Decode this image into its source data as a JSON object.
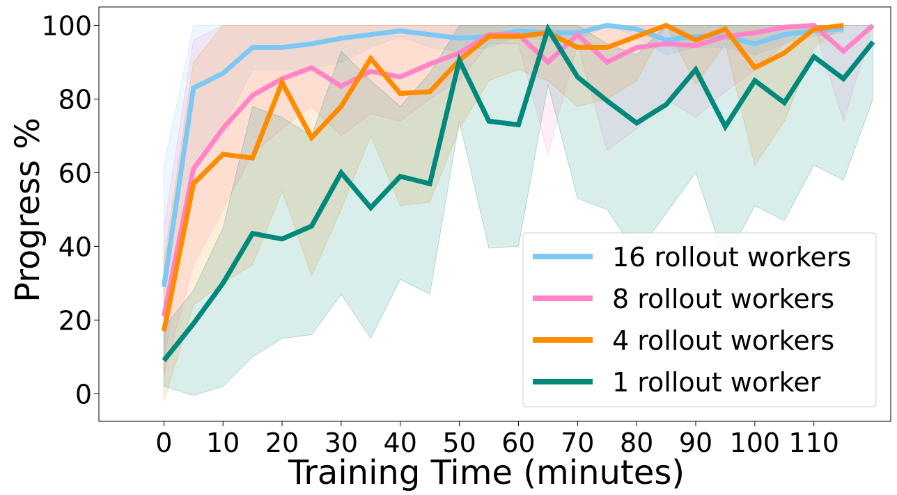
{
  "chart_data": {
    "type": "line",
    "title": "",
    "xlabel": "Training Time (minutes)",
    "ylabel": "Progress %",
    "xlim": [
      -11,
      123
    ],
    "ylim": [
      -7.5,
      105
    ],
    "xticks": [
      0,
      10,
      20,
      30,
      40,
      50,
      60,
      70,
      80,
      90,
      100,
      110
    ],
    "yticks": [
      0,
      20,
      40,
      60,
      80,
      100
    ],
    "grid": false,
    "legend_position": "lower-right",
    "series": [
      {
        "name": "16 rollout workers",
        "color": "#7ec8f5",
        "x": [
          0,
          5,
          10,
          15,
          20,
          25,
          30,
          35,
          40,
          45,
          50,
          55,
          60,
          65,
          70,
          75,
          80,
          85,
          90,
          95,
          100,
          105,
          110,
          115
        ],
        "values": [
          29,
          83,
          87,
          94,
          94,
          95,
          96.5,
          97.5,
          98.5,
          97.5,
          96.5,
          97,
          98.5,
          98,
          98,
          100,
          99,
          96,
          97,
          97,
          95,
          97.5,
          98.5,
          99
        ],
        "upper": [
          62,
          100,
          100,
          100,
          100,
          100,
          100,
          100,
          100,
          100,
          100,
          100,
          100,
          100,
          100,
          100,
          100,
          100,
          100,
          100,
          100,
          100,
          100,
          100
        ],
        "lower": [
          8,
          62,
          72,
          88,
          88,
          88,
          90,
          94,
          97,
          94,
          93,
          94,
          97,
          96,
          96,
          100,
          97,
          92,
          94,
          94,
          92,
          95,
          97,
          98
        ]
      },
      {
        "name": "8 rollout workers",
        "color": "#ff85c8",
        "x": [
          0,
          5,
          10,
          15,
          20,
          25,
          30,
          35,
          40,
          45,
          50,
          55,
          60,
          65,
          70,
          75,
          80,
          85,
          90,
          95,
          100,
          105,
          110,
          115,
          120
        ],
        "values": [
          21,
          61,
          72,
          81,
          85.5,
          88.5,
          83.5,
          87.5,
          86,
          89.5,
          92.5,
          97.5,
          97.5,
          90,
          97.5,
          90,
          94,
          95,
          94.5,
          97,
          98,
          99.5,
          100,
          93,
          100
        ],
        "upper": [
          45,
          96,
          100,
          100,
          100,
          100,
          100,
          100,
          100,
          100,
          100,
          100,
          100,
          100,
          100,
          100,
          100,
          100,
          100,
          100,
          100,
          100,
          100,
          100,
          100
        ],
        "lower": [
          5,
          35,
          50,
          65,
          72,
          78,
          70,
          76,
          74,
          80,
          85,
          95,
          95,
          65,
          95,
          66,
          72,
          80,
          75,
          82,
          88,
          95,
          100,
          74,
          100
        ]
      },
      {
        "name": "4 rollout workers",
        "color": "#ff8c00",
        "x": [
          0,
          5,
          10,
          15,
          20,
          25,
          30,
          35,
          40,
          45,
          50,
          55,
          60,
          65,
          70,
          75,
          80,
          85,
          90,
          95,
          100,
          105,
          110,
          115
        ],
        "values": [
          17,
          57,
          65,
          64,
          84.5,
          69.5,
          78,
          91,
          81.5,
          82,
          90.5,
          97,
          97,
          98,
          94,
          94,
          97,
          100,
          96,
          99,
          88.5,
          92.5,
          99,
          100
        ],
        "upper": [
          36,
          90,
          100,
          100,
          100,
          100,
          100,
          100,
          100,
          100,
          100,
          100,
          100,
          100,
          100,
          100,
          100,
          100,
          100,
          100,
          100,
          100,
          100,
          100
        ],
        "lower": [
          -2,
          24,
          30,
          35,
          55,
          32,
          50,
          70,
          51,
          52,
          72,
          85,
          88,
          85,
          78,
          80,
          85,
          100,
          84,
          95,
          62,
          74,
          94,
          100
        ]
      },
      {
        "name": "1 rollout worker",
        "color": "#00897b",
        "x": [
          0,
          5,
          10,
          15,
          20,
          25,
          30,
          35,
          40,
          45,
          50,
          55,
          60,
          65,
          70,
          75,
          80,
          85,
          90,
          95,
          100,
          105,
          110,
          115,
          120
        ],
        "values": [
          9,
          19,
          30,
          43.5,
          42,
          45.5,
          60,
          50.5,
          59,
          57,
          90.5,
          74,
          73,
          99,
          86,
          79.5,
          73.5,
          78.5,
          88,
          72.5,
          85,
          79,
          91.5,
          85.5,
          95.5
        ],
        "upper": [
          18,
          28,
          45,
          78,
          75,
          70,
          93,
          85,
          78,
          87,
          100,
          100,
          100,
          100,
          100,
          95,
          92,
          100,
          100,
          100,
          100,
          100,
          100,
          100,
          100
        ],
        "lower": [
          2,
          -0.5,
          2,
          10,
          15,
          16,
          27,
          15,
          31,
          27,
          74,
          39.5,
          40,
          84,
          53,
          50,
          38,
          49,
          60,
          36,
          51,
          47,
          62,
          58,
          80
        ]
      }
    ]
  }
}
